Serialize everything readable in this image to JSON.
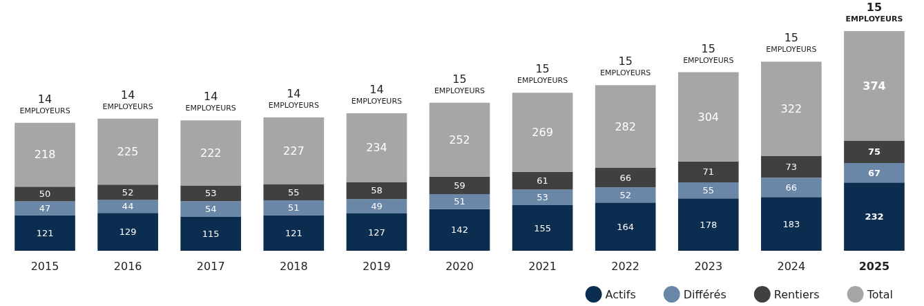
{
  "chart_data": {
    "type": "bar",
    "stacked": true,
    "data_labels": true,
    "legend": "bottom right",
    "categories": [
      "2015",
      "2016",
      "2017",
      "2018",
      "2019",
      "2020",
      "2021",
      "2022",
      "2023",
      "2024",
      "2025"
    ],
    "series": [
      {
        "name": "Actifs",
        "color": "#0b2d50",
        "values": [
          121,
          129,
          115,
          121,
          127,
          142,
          155,
          164,
          178,
          183,
          232
        ]
      },
      {
        "name": "Différés",
        "color": "#6a87a8",
        "values": [
          47,
          44,
          54,
          51,
          49,
          51,
          53,
          52,
          55,
          66,
          67
        ]
      },
      {
        "name": "Rentiers",
        "color": "#404040",
        "values": [
          50,
          52,
          53,
          55,
          58,
          59,
          61,
          66,
          71,
          73,
          75
        ]
      },
      {
        "name": "Total",
        "color": "#a6a6a6",
        "values": [
          218,
          225,
          222,
          227,
          234,
          252,
          269,
          282,
          304,
          322,
          374
        ]
      }
    ],
    "annotations": [
      {
        "text": "14\nEMPLOYEURS",
        "x": "2015",
        "y": 436
      },
      {
        "text": "14\nEMPLOYEURS",
        "x": "2016",
        "y": 450
      },
      {
        "text": "14\nEMPLOYEURS",
        "x": "2017",
        "y": 444
      },
      {
        "text": "14\nEMPLOYEURS",
        "x": "2018",
        "y": 454
      },
      {
        "text": "14\nEMPLOYEURS",
        "x": "2019",
        "y": 468
      },
      {
        "text": "15\nEMPLOYEURS",
        "x": "2020",
        "y": 504
      },
      {
        "text": "15\nEMPLOYEURS",
        "x": "2021",
        "y": 538
      },
      {
        "text": "15\nEMPLOYEURS",
        "x": "2022",
        "y": 564
      },
      {
        "text": "15\nEMPLOYEURS",
        "x": "2023",
        "y": 608
      },
      {
        "text": "15\nEMPLOYEURS",
        "x": "2024",
        "y": 644
      },
      {
        "text": "15\nEMPLOYEURS",
        "x": "2025",
        "y": 748
      }
    ]
  }
}
